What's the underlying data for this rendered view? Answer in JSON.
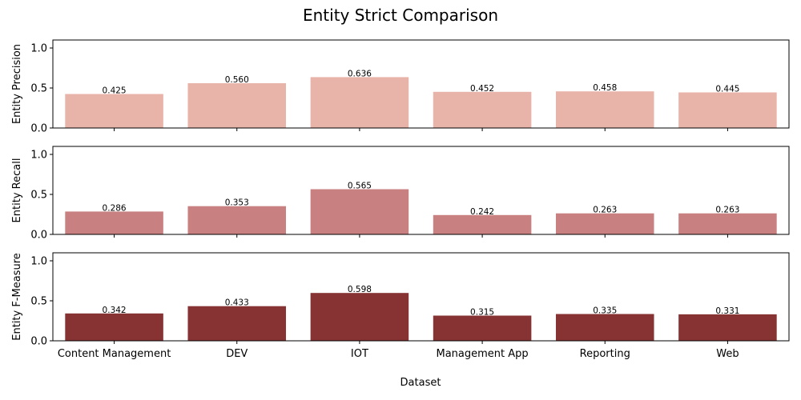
{
  "chart_data": {
    "type": "bar",
    "title": "Entity Strict Comparison",
    "xlabel": "Dataset",
    "categories": [
      "Content Management",
      "DEV",
      "IOT",
      "Management App",
      "Reporting",
      "Web"
    ],
    "ylim": [
      0,
      1.1
    ],
    "yticks": [
      "0.0",
      "0.5",
      "1.0"
    ],
    "panels": [
      {
        "ylabel": "Entity Precision",
        "color": "#e8b3a9",
        "values": [
          0.425,
          0.56,
          0.636,
          0.452,
          0.458,
          0.445
        ],
        "labels": [
          "0.425",
          "0.560",
          "0.636",
          "0.452",
          "0.458",
          "0.445"
        ]
      },
      {
        "ylabel": "Entity Recall",
        "color": "#c98080",
        "values": [
          0.286,
          0.353,
          0.565,
          0.242,
          0.263,
          0.263
        ],
        "labels": [
          "0.286",
          "0.353",
          "0.565",
          "0.242",
          "0.263",
          "0.263"
        ]
      },
      {
        "ylabel": "Entity F-Measure",
        "color": "#873334",
        "values": [
          0.342,
          0.433,
          0.598,
          0.315,
          0.335,
          0.331
        ],
        "labels": [
          "0.342",
          "0.433",
          "0.598",
          "0.315",
          "0.335",
          "0.331"
        ]
      }
    ]
  }
}
